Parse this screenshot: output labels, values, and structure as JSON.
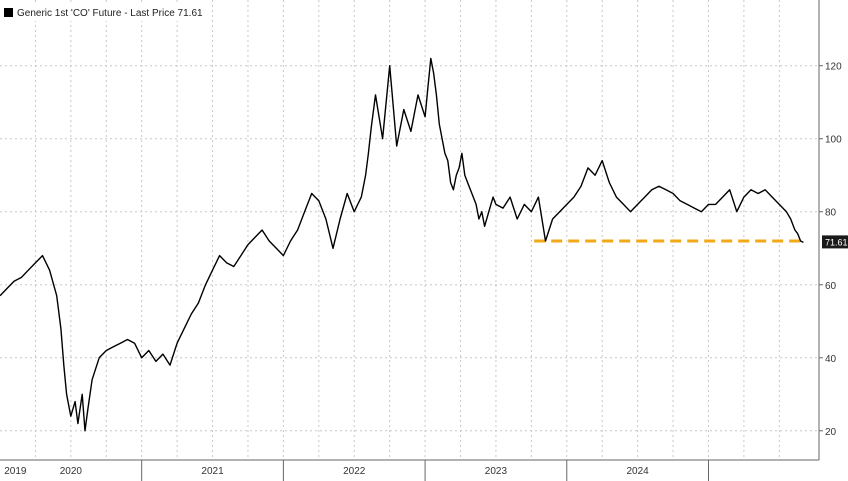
{
  "chart_data": {
    "type": "line",
    "title": "",
    "xlabel": "",
    "ylabel": "",
    "legend": {
      "label": "Generic 1st 'CO' Future - Last Price 71.61",
      "placement": "top-left"
    },
    "xlim": [
      2019.0,
      2024.78
    ],
    "ylim": [
      12,
      138
    ],
    "y_ticks": [
      20,
      40,
      60,
      80,
      100,
      120
    ],
    "y_tick_labels": [
      "20",
      "40",
      "60",
      "80",
      "100",
      "120"
    ],
    "x_year_labels": [
      "2019",
      "2020",
      "2021",
      "2022",
      "2023",
      "2024"
    ],
    "x_year_label_positions": [
      2019.03,
      2019.5,
      2020.5,
      2021.5,
      2022.5,
      2023.5
    ],
    "x_year_boundaries": [
      2020.0,
      2021.0,
      2022.0,
      2023.0,
      2024.0
    ],
    "x_minor_gridlines": [
      2019.25,
      2019.5,
      2019.75,
      2020.0,
      2020.25,
      2020.5,
      2020.75,
      2021.0,
      2021.25,
      2021.5,
      2021.75,
      2022.0,
      2022.25,
      2022.5,
      2022.75,
      2023.0,
      2023.25,
      2023.5,
      2023.75,
      2024.0,
      2024.25,
      2024.5
    ],
    "grid": true,
    "last_price_label": "71.61",
    "colors": {
      "line": "#000000",
      "reference": "#f2a818",
      "last_label_bg": "#1a1a1a"
    },
    "series": [
      {
        "name": "Generic 1st 'CO' Future - Last Price 71.61",
        "x": [
          2019.0,
          2019.05,
          2019.1,
          2019.15,
          2019.2,
          2019.25,
          2019.3,
          2019.35,
          2019.4,
          2019.43,
          2019.45,
          2019.47,
          2019.5,
          2019.53,
          2019.55,
          2019.58,
          2019.6,
          2019.62,
          2019.65,
          2019.7,
          2019.75,
          2019.8,
          2019.85,
          2019.9,
          2019.95,
          2020.0,
          2020.05,
          2020.1,
          2020.15,
          2020.2,
          2020.25,
          2020.3,
          2020.35,
          2020.4,
          2020.45,
          2020.5,
          2020.55,
          2020.6,
          2020.65,
          2020.7,
          2020.75,
          2020.8,
          2020.85,
          2020.9,
          2020.95,
          2021.0,
          2021.05,
          2021.1,
          2021.15,
          2021.2,
          2021.25,
          2021.3,
          2021.35,
          2021.4,
          2021.45,
          2021.5,
          2021.55,
          2021.58,
          2021.6,
          2021.62,
          2021.65,
          2021.7,
          2021.75,
          2021.8,
          2021.85,
          2021.9,
          2021.95,
          2022.0,
          2022.02,
          2022.04,
          2022.06,
          2022.08,
          2022.1,
          2022.12,
          2022.14,
          2022.16,
          2022.18,
          2022.2,
          2022.22,
          2022.24,
          2022.26,
          2022.28,
          2022.3,
          2022.32,
          2022.34,
          2022.36,
          2022.38,
          2022.4,
          2022.42,
          2022.45,
          2022.48,
          2022.5,
          2022.55,
          2022.6,
          2022.65,
          2022.7,
          2022.75,
          2022.8,
          2022.85,
          2022.9,
          2022.95,
          2023.0,
          2023.05,
          2023.1,
          2023.15,
          2023.2,
          2023.25,
          2023.3,
          2023.35,
          2023.4,
          2023.45,
          2023.5,
          2023.55,
          2023.6,
          2023.65,
          2023.7,
          2023.75,
          2023.8,
          2023.85,
          2023.9,
          2023.95,
          2024.0,
          2024.05,
          2024.1,
          2024.15,
          2024.2,
          2024.25,
          2024.3,
          2024.35,
          2024.4,
          2024.45,
          2024.5,
          2024.55,
          2024.58,
          2024.61,
          2024.63,
          2024.65,
          2024.67
        ],
        "values": [
          57,
          59,
          61,
          62,
          64,
          66,
          68,
          64,
          57,
          48,
          38,
          30,
          24,
          28,
          22,
          30,
          20,
          26,
          34,
          40,
          42,
          43,
          44,
          45,
          44,
          40,
          42,
          39,
          41,
          38,
          44,
          48,
          52,
          55,
          60,
          64,
          68,
          66,
          65,
          68,
          71,
          73,
          75,
          72,
          70,
          68,
          72,
          75,
          80,
          85,
          83,
          78,
          70,
          78,
          85,
          80,
          84,
          90,
          96,
          103,
          112,
          100,
          120,
          98,
          108,
          102,
          112,
          106,
          114,
          122,
          118,
          112,
          104,
          100,
          96,
          94,
          88,
          86,
          90,
          92,
          96,
          90,
          88,
          86,
          84,
          82,
          78,
          80,
          76,
          80,
          84,
          82,
          81,
          84,
          78,
          82,
          80,
          84,
          72,
          78,
          80,
          82,
          84,
          87,
          92,
          90,
          94,
          88,
          84,
          82,
          80,
          82,
          84,
          86,
          87,
          86,
          85,
          83,
          82,
          81,
          80,
          82,
          82,
          84,
          86,
          80,
          84,
          86,
          85,
          86,
          84,
          82,
          80,
          78,
          75,
          74,
          72,
          71.61
        ],
        "color": "#000000"
      }
    ],
    "reference_line": {
      "y": 72,
      "x_start": 2022.77,
      "x_end": 2024.67,
      "style": "dashed",
      "color": "#f2a818"
    }
  }
}
